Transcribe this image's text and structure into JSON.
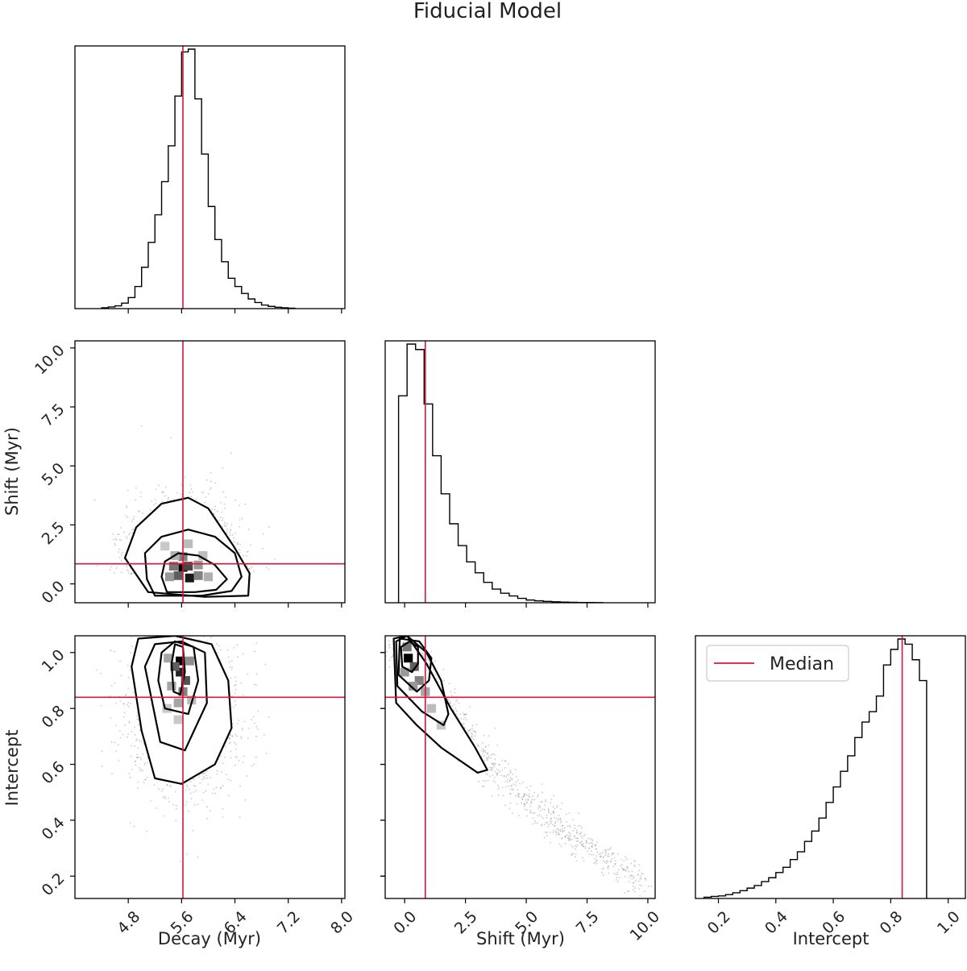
{
  "chart_data": {
    "type": "corner",
    "title": "Fiducial Model",
    "legend": {
      "label": "Median",
      "position": "top-left of bottom-right panel"
    },
    "colors": {
      "median": "#dc143c",
      "hist": "#000000",
      "points": "#7f7f7f"
    },
    "parameters": [
      {
        "name": "Decay (Myr)",
        "median": 5.62,
        "range": [
          4.0,
          8.05
        ],
        "ticks": [
          4.8,
          5.6,
          6.4,
          7.2,
          8.0
        ],
        "tick_labels": [
          "4.8",
          "5.6",
          "6.4",
          "7.2",
          "8.0"
        ],
        "hist": {
          "edges_start": 4.4,
          "bin_width": 0.1,
          "counts": [
            0.3,
            0.6,
            1.0,
            2.0,
            4.0,
            8.0,
            15.0,
            24.0,
            34.0,
            46.0,
            59.0,
            77.0,
            93.0,
            94.0,
            76.0,
            56.0,
            37.0,
            25.0,
            17.0,
            11.0,
            8.0,
            5.5,
            3.5,
            2.2,
            1.3,
            0.8,
            0.5,
            0.3,
            0.15
          ]
        }
      },
      {
        "name": "Shift (Myr)",
        "median": 0.85,
        "range": [
          -0.8,
          10.3
        ],
        "ticks": [
          0.0,
          2.5,
          5.0,
          7.5,
          10.0
        ],
        "tick_labels": [
          "0.0",
          "2.5",
          "5.0",
          "7.5",
          "10.0"
        ],
        "hist": {
          "edges_start": -0.25,
          "bin_width": 0.35,
          "counts": [
            76,
            95,
            93,
            73,
            54,
            40,
            29,
            21,
            15,
            11,
            7.5,
            5.0,
            3.5,
            2.5,
            1.6,
            1.0,
            0.7,
            0.5,
            0.35,
            0.25,
            0.15,
            0.1,
            0.1,
            0.05
          ]
        }
      },
      {
        "name": "Intercept",
        "median": 0.84,
        "range": [
          0.12,
          1.06
        ],
        "ticks": [
          0.2,
          0.4,
          0.6,
          0.8,
          1.0
        ],
        "tick_labels": [
          "0.2",
          "0.4",
          "0.6",
          "0.8",
          "1.0"
        ],
        "hist": {
          "edges_start": 0.15,
          "bin_width": 0.025,
          "counts": [
            0.5,
            0.8,
            1.0,
            1.5,
            2.2,
            3.0,
            4.0,
            5.0,
            6.5,
            8.0,
            10.0,
            12.0,
            15.0,
            18.0,
            22.0,
            26.0,
            31.0,
            37.0,
            43.0,
            49.0,
            55.0,
            62.0,
            68.0,
            72.0,
            78.0,
            90.0,
            96.0,
            100.0,
            98.0,
            92.0,
            84.0
          ]
        }
      }
    ],
    "pairs": [
      {
        "x_param": 0,
        "y_param": 1,
        "contours": [
          [
            [
              5.38,
              -0.35
            ],
            [
              5.8,
              -0.35
            ],
            [
              6.12,
              -0.25
            ],
            [
              6.28,
              0.2
            ],
            [
              6.1,
              0.8
            ],
            [
              5.85,
              1.2
            ],
            [
              5.55,
              1.3
            ],
            [
              5.35,
              0.95
            ],
            [
              5.3,
              0.3
            ]
          ],
          [
            [
              5.2,
              -0.5
            ],
            [
              5.9,
              -0.5
            ],
            [
              6.35,
              -0.3
            ],
            [
              6.5,
              0.3
            ],
            [
              6.4,
              1.3
            ],
            [
              6.1,
              2.0
            ],
            [
              5.7,
              2.3
            ],
            [
              5.3,
              2.0
            ],
            [
              5.05,
              1.3
            ],
            [
              5.08,
              0.2
            ]
          ],
          [
            [
              5.1,
              -0.35
            ],
            [
              5.95,
              -0.55
            ],
            [
              6.6,
              -0.5
            ],
            [
              6.62,
              0.45
            ],
            [
              6.38,
              1.6
            ],
            [
              6.0,
              3.2
            ],
            [
              5.7,
              3.65
            ],
            [
              5.3,
              3.4
            ],
            [
              4.92,
              2.4
            ],
            [
              4.75,
              1.1
            ]
          ]
        ],
        "density": [
          {
            "x": 5.62,
            "y": 0.7,
            "level": 1.0
          },
          {
            "x": 5.72,
            "y": 0.25,
            "level": 0.9
          },
          {
            "x": 5.55,
            "y": 0.35,
            "level": 0.6
          },
          {
            "x": 5.7,
            "y": 0.75,
            "level": 0.7
          },
          {
            "x": 5.48,
            "y": 0.75,
            "level": 0.5
          },
          {
            "x": 5.62,
            "y": 1.15,
            "level": 0.45
          },
          {
            "x": 5.85,
            "y": 0.35,
            "level": 0.45
          },
          {
            "x": 5.85,
            "y": 0.8,
            "level": 0.35
          },
          {
            "x": 5.42,
            "y": 0.3,
            "level": 0.35
          },
          {
            "x": 5.5,
            "y": 1.2,
            "level": 0.25
          },
          {
            "x": 5.92,
            "y": 1.2,
            "level": 0.2
          },
          {
            "x": 6.0,
            "y": 0.3,
            "level": 0.25
          },
          {
            "x": 5.35,
            "y": 1.6,
            "level": 0.15
          },
          {
            "x": 5.7,
            "y": 1.7,
            "level": 0.2
          }
        ],
        "scatter_cloud": {
          "center": [
            5.65,
            1.0
          ],
          "spread": [
            0.42,
            1.5
          ],
          "count": 1400
        }
      },
      {
        "x_param": 0,
        "y_param": 2,
        "contours": [
          [
            [
              5.48,
              0.86
            ],
            [
              5.58,
              0.85
            ],
            [
              5.65,
              0.93
            ],
            [
              5.62,
              1.02
            ],
            [
              5.5,
              1.03
            ],
            [
              5.45,
              0.96
            ]
          ],
          [
            [
              5.35,
              0.8
            ],
            [
              5.7,
              0.78
            ],
            [
              5.85,
              0.9
            ],
            [
              5.78,
              1.02
            ],
            [
              5.5,
              1.04
            ],
            [
              5.3,
              1.0
            ],
            [
              5.25,
              0.9
            ]
          ],
          [
            [
              5.28,
              0.68
            ],
            [
              5.65,
              0.65
            ],
            [
              5.98,
              0.82
            ],
            [
              5.95,
              1.0
            ],
            [
              5.6,
              1.04
            ],
            [
              5.2,
              1.03
            ],
            [
              5.05,
              0.95
            ]
          ],
          [
            [
              5.2,
              0.55
            ],
            [
              5.6,
              0.53
            ],
            [
              6.1,
              0.6
            ],
            [
              6.35,
              0.73
            ],
            [
              6.3,
              0.9
            ],
            [
              6.05,
              1.03
            ],
            [
              5.5,
              1.06
            ],
            [
              4.95,
              1.05
            ],
            [
              4.85,
              0.95
            ],
            [
              5.0,
              0.72
            ]
          ]
        ],
        "density": [
          {
            "x": 5.58,
            "y": 0.97,
            "level": 1.0
          },
          {
            "x": 5.58,
            "y": 0.93,
            "level": 0.85
          },
          {
            "x": 5.5,
            "y": 0.95,
            "level": 0.6
          },
          {
            "x": 5.66,
            "y": 0.9,
            "level": 0.65
          },
          {
            "x": 5.62,
            "y": 0.86,
            "level": 0.45
          },
          {
            "x": 5.45,
            "y": 0.88,
            "level": 0.3
          },
          {
            "x": 5.72,
            "y": 0.97,
            "level": 0.4
          },
          {
            "x": 5.55,
            "y": 0.82,
            "level": 0.3
          },
          {
            "x": 5.4,
            "y": 0.98,
            "level": 0.3
          },
          {
            "x": 5.75,
            "y": 0.83,
            "level": 0.2
          },
          {
            "x": 5.55,
            "y": 0.76,
            "level": 0.15
          },
          {
            "x": 5.38,
            "y": 0.8,
            "level": 0.15
          }
        ],
        "scatter_cloud": {
          "center": [
            5.65,
            0.78
          ],
          "spread": [
            0.42,
            0.15
          ],
          "count": 1400
        }
      },
      {
        "x_param": 1,
        "y_param": 2,
        "contours": [
          [
            [
              -0.1,
              0.95
            ],
            [
              0.3,
              0.93
            ],
            [
              0.55,
              0.96
            ],
            [
              0.55,
              1.02
            ],
            [
              0.2,
              1.04
            ],
            [
              -0.15,
              1.02
            ]
          ],
          [
            [
              -0.25,
              0.92
            ],
            [
              0.5,
              0.86
            ],
            [
              1.0,
              0.9
            ],
            [
              1.1,
              0.98
            ],
            [
              0.6,
              1.04
            ],
            [
              -0.2,
              1.05
            ]
          ],
          [
            [
              -0.3,
              0.88
            ],
            [
              0.7,
              0.79
            ],
            [
              1.6,
              0.74
            ],
            [
              1.8,
              0.78
            ],
            [
              1.5,
              0.9
            ],
            [
              0.9,
              1.0
            ],
            [
              0.1,
              1.06
            ],
            [
              -0.35,
              1.04
            ]
          ],
          [
            [
              -0.35,
              0.82
            ],
            [
              0.5,
              0.74
            ],
            [
              1.5,
              0.66
            ],
            [
              3.0,
              0.57
            ],
            [
              3.4,
              0.58
            ],
            [
              2.9,
              0.66
            ],
            [
              1.9,
              0.8
            ],
            [
              0.9,
              0.96
            ],
            [
              0.1,
              1.06
            ],
            [
              -0.45,
              1.05
            ]
          ]
        ],
        "density": [
          {
            "x": 0.15,
            "y": 0.98,
            "level": 1.0
          },
          {
            "x": 0.4,
            "y": 0.95,
            "level": 0.6
          },
          {
            "x": 0.1,
            "y": 1.02,
            "level": 0.5
          },
          {
            "x": 0.6,
            "y": 0.9,
            "level": 0.45
          },
          {
            "x": 0.35,
            "y": 0.88,
            "level": 0.35
          },
          {
            "x": 0.85,
            "y": 0.86,
            "level": 0.3
          },
          {
            "x": 0.0,
            "y": 0.93,
            "level": 0.35
          },
          {
            "x": 1.1,
            "y": 0.8,
            "level": 0.2
          },
          {
            "x": 1.5,
            "y": 0.74,
            "level": 0.15
          }
        ],
        "scatter_cloud": {
          "type": "curve",
          "curve": [
            [
              0.0,
              1.0
            ],
            [
              1.0,
              0.86
            ],
            [
              2.5,
              0.7
            ],
            [
              5.0,
              0.47
            ],
            [
              7.5,
              0.3
            ],
            [
              10.0,
              0.17
            ]
          ],
          "count": 1400
        }
      }
    ]
  }
}
